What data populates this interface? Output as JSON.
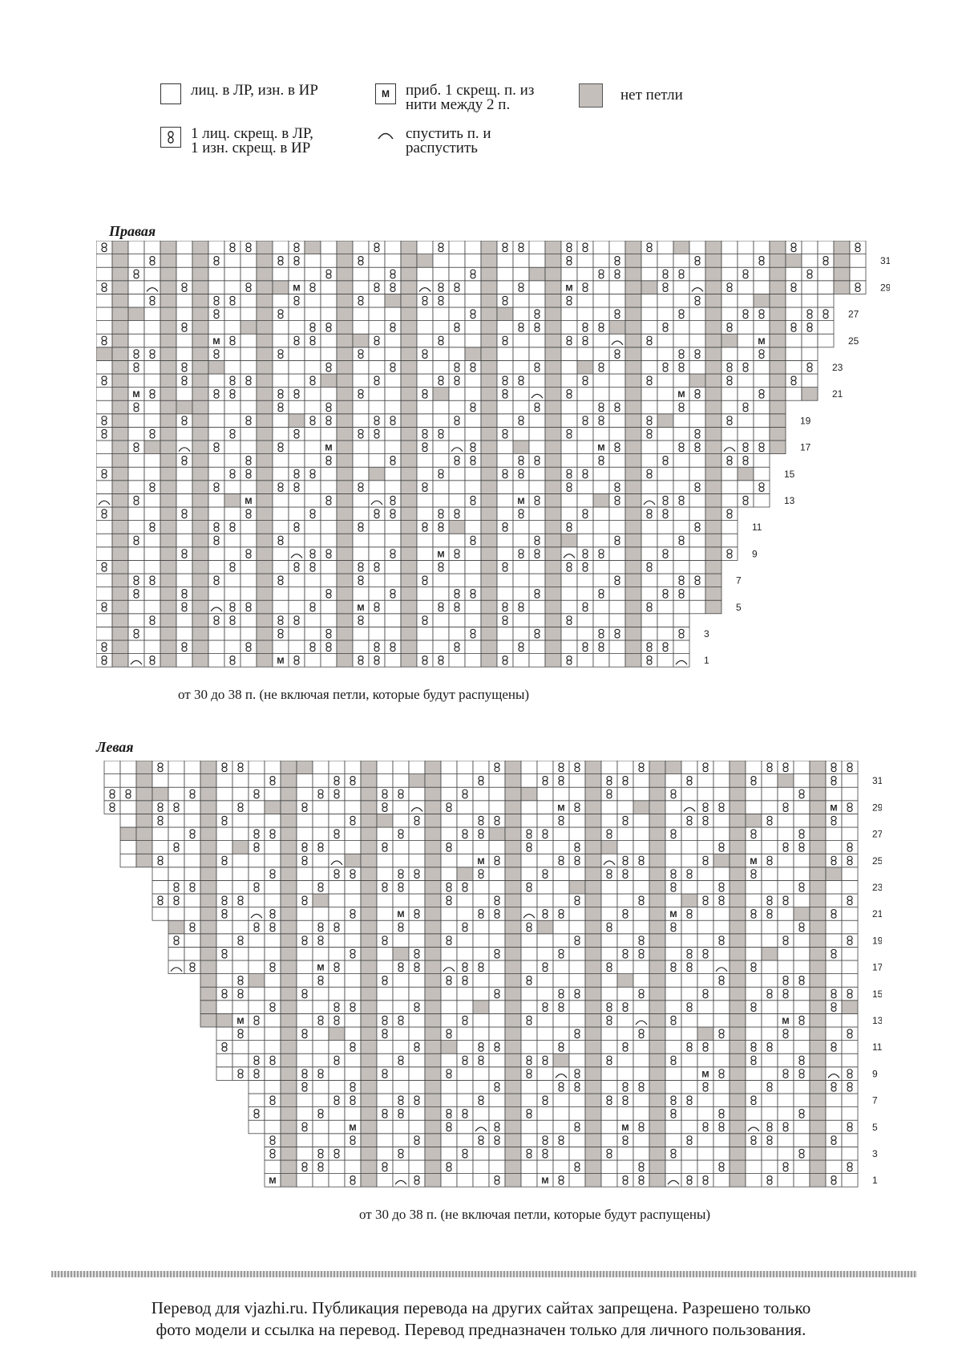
{
  "legend": {
    "plain_knit": "лиц. в ЛР, изн. в ИР",
    "twisted": "1 лиц. скрещ. в ЛР,\n1 изн. скрещ. в ИР",
    "make_one": "приб. 1 скрещ. п. из\nнити между 2 п.",
    "make_one_symbol": "М",
    "drop": "спустить п. и\nраспустить",
    "no_stitch": "нет петли"
  },
  "charts": [
    {
      "title": "Правая",
      "caption": "от 30 до 38 п. (не включая петли, которые будут распущены)",
      "rows": 32,
      "columns": 48,
      "row_labels": [
        "1",
        "3",
        "5",
        "7",
        "9",
        "11",
        "13",
        "15",
        "17",
        "19",
        "21",
        "23",
        "25",
        "27",
        "29",
        "31"
      ],
      "colors": {
        "grid": "#444444",
        "no_stitch": "#c4bfbb",
        "symbol": "#222222"
      }
    },
    {
      "title": "Левая",
      "caption": "от 30 до 38 п. (не включая петли, которые будут распущены)",
      "rows": 32,
      "columns": 48,
      "row_labels": [
        "1",
        "3",
        "5",
        "7",
        "9",
        "11",
        "13",
        "15",
        "17",
        "19",
        "21",
        "23",
        "25",
        "27",
        "29",
        "31"
      ],
      "colors": {
        "grid": "#444444",
        "no_stitch": "#c4bfbb",
        "symbol": "#222222"
      }
    }
  ],
  "footer": {
    "line1": "Перевод для vjazhi.ru. Публикация перевода на других сайтах запрещена. Разрешено только",
    "line2": "фото модели и ссылка на перевод.  Перевод предназначен только для личного пользования."
  }
}
